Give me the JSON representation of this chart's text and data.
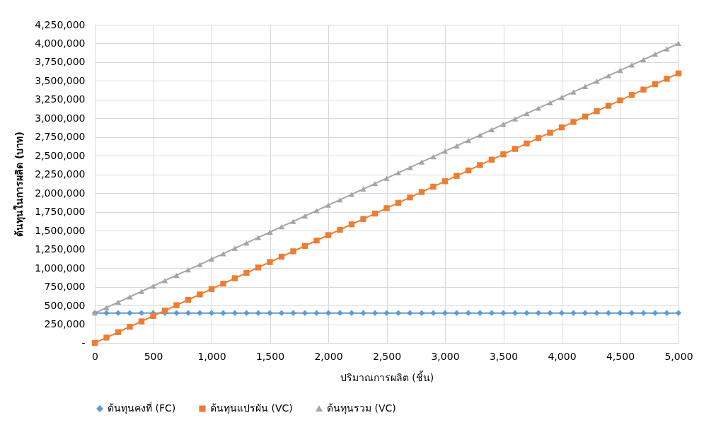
{
  "chart_data": {
    "type": "line",
    "xlabel": "ปริมาณการผลิต (ชิ้น)",
    "ylabel": "ต้นทุนในการผลิต (บาท)",
    "x": [
      0,
      100,
      200,
      300,
      400,
      500,
      600,
      700,
      800,
      900,
      1000,
      1100,
      1200,
      1300,
      1400,
      1500,
      1600,
      1700,
      1800,
      1900,
      2000,
      2100,
      2200,
      2300,
      2400,
      2500,
      2600,
      2700,
      2800,
      2900,
      3000,
      3100,
      3200,
      3300,
      3400,
      3500,
      3600,
      3700,
      3800,
      3900,
      4000,
      4100,
      4200,
      4300,
      4400,
      4500,
      4600,
      4700,
      4800,
      4900,
      5000
    ],
    "series": [
      {
        "name": "ต้นทุนคงที่ (FC)",
        "color": "#5b9bd5",
        "marker": "diamond",
        "values": [
          400000,
          400000,
          400000,
          400000,
          400000,
          400000,
          400000,
          400000,
          400000,
          400000,
          400000,
          400000,
          400000,
          400000,
          400000,
          400000,
          400000,
          400000,
          400000,
          400000,
          400000,
          400000,
          400000,
          400000,
          400000,
          400000,
          400000,
          400000,
          400000,
          400000,
          400000,
          400000,
          400000,
          400000,
          400000,
          400000,
          400000,
          400000,
          400000,
          400000,
          400000,
          400000,
          400000,
          400000,
          400000,
          400000,
          400000,
          400000,
          400000,
          400000,
          400000
        ]
      },
      {
        "name": "ต้นทุนแปรผัน (VC)",
        "color": "#ed7d31",
        "marker": "square",
        "values": [
          0,
          72000,
          144000,
          216000,
          288000,
          360000,
          432000,
          504000,
          576000,
          648000,
          720000,
          792000,
          864000,
          936000,
          1008000,
          1080000,
          1152000,
          1224000,
          1296000,
          1368000,
          1440000,
          1512000,
          1584000,
          1656000,
          1728000,
          1800000,
          1872000,
          1944000,
          2016000,
          2088000,
          2160000,
          2232000,
          2304000,
          2376000,
          2448000,
          2520000,
          2592000,
          2664000,
          2736000,
          2808000,
          2880000,
          2952000,
          3024000,
          3096000,
          3168000,
          3240000,
          3312000,
          3384000,
          3456000,
          3528000,
          3600000
        ]
      },
      {
        "name": "ต้นทุนรวม (VC)",
        "color": "#a5a5a5",
        "marker": "triangle",
        "values": [
          400000,
          472000,
          544000,
          616000,
          688000,
          760000,
          832000,
          904000,
          976000,
          1048000,
          1120000,
          1192000,
          1264000,
          1336000,
          1408000,
          1480000,
          1552000,
          1624000,
          1696000,
          1768000,
          1840000,
          1912000,
          1984000,
          2056000,
          2128000,
          2200000,
          2272000,
          2344000,
          2416000,
          2488000,
          2560000,
          2632000,
          2704000,
          2776000,
          2848000,
          2920000,
          2992000,
          3064000,
          3136000,
          3208000,
          3280000,
          3352000,
          3424000,
          3496000,
          3568000,
          3640000,
          3712000,
          3784000,
          3856000,
          3928000,
          4000000
        ]
      }
    ],
    "xlim": [
      0,
      5000
    ],
    "xticks": [
      0,
      500,
      {
        "value": 1000,
        "label": "1,000"
      },
      {
        "value": 1500,
        "label": "1,500"
      },
      {
        "value": 2000,
        "label": "2,000"
      },
      {
        "value": 2500,
        "label": "2,500"
      },
      {
        "value": 3000,
        "label": "3,000"
      },
      {
        "value": 3500,
        "label": "3,500"
      },
      {
        "value": 4000,
        "label": "4,000"
      },
      {
        "value": 4500,
        "label": "4,500"
      },
      {
        "value": 5000,
        "label": "5,000"
      }
    ],
    "ylim": [
      0,
      4250000
    ],
    "yticks": [
      {
        "value": 0,
        "label": "-"
      },
      {
        "value": 250000,
        "label": "250,000"
      },
      {
        "value": 500000,
        "label": "500,000"
      },
      {
        "value": 750000,
        "label": "750,000"
      },
      {
        "value": 1000000,
        "label": "1,000,000"
      },
      {
        "value": 1250000,
        "label": "1,250,000"
      },
      {
        "value": 1500000,
        "label": "1,500,000"
      },
      {
        "value": 1750000,
        "label": "1,750,000"
      },
      {
        "value": 2000000,
        "label": "2,000,000"
      },
      {
        "value": 2250000,
        "label": "2,250,000"
      },
      {
        "value": 2500000,
        "label": "2,500,000"
      },
      {
        "value": 2750000,
        "label": "2,750,000"
      },
      {
        "value": 3000000,
        "label": "3,000,000"
      },
      {
        "value": 3250000,
        "label": "3,250,000"
      },
      {
        "value": 3500000,
        "label": "3,500,000"
      },
      {
        "value": 3750000,
        "label": "3,750,000"
      },
      {
        "value": 4000000,
        "label": "4,000,000"
      },
      {
        "value": 4250000,
        "label": "4,250,000"
      }
    ],
    "grid": true,
    "legend": "bottom",
    "line_style": "solid"
  }
}
